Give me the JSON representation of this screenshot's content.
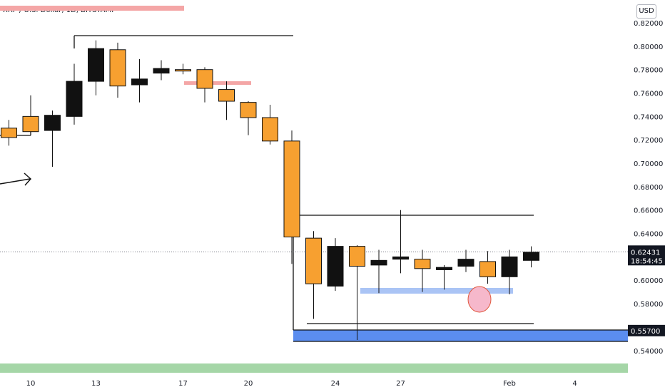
{
  "header": {
    "title": "XRP / U.S. Dollar, 1D, BITSTAMP",
    "currency_button": "USD"
  },
  "chart_data": {
    "type": "candlestick",
    "x_ticks": [
      {
        "label": "10",
        "day": 0
      },
      {
        "label": "13",
        "day": 3
      },
      {
        "label": "17",
        "day": 7
      },
      {
        "label": "20",
        "day": 10
      },
      {
        "label": "24",
        "day": 14
      },
      {
        "label": "27",
        "day": 17
      },
      {
        "label": "Feb",
        "day": 22
      },
      {
        "label": "4",
        "day": 25
      }
    ],
    "y_ticks": [
      "0.82000",
      "0.80000",
      "0.78000",
      "0.76000",
      "0.74000",
      "0.72000",
      "0.70000",
      "0.68000",
      "0.66000",
      "0.64000",
      "0.62000",
      "0.60000",
      "0.58000",
      "0.56000",
      "0.54000"
    ],
    "ylim": [
      0.535,
      0.827
    ],
    "candles": [
      {
        "day": -1,
        "o": 0.73,
        "h": 0.737,
        "l": 0.715,
        "c": 0.722
      },
      {
        "day": 0,
        "o": 0.74,
        "h": 0.758,
        "l": 0.724,
        "c": 0.727
      },
      {
        "day": 1,
        "o": 0.728,
        "h": 0.745,
        "l": 0.697,
        "c": 0.741
      },
      {
        "day": 2,
        "o": 0.74,
        "h": 0.785,
        "l": 0.733,
        "c": 0.77
      },
      {
        "day": 3,
        "o": 0.77,
        "h": 0.805,
        "l": 0.758,
        "c": 0.798
      },
      {
        "day": 4,
        "o": 0.797,
        "h": 0.803,
        "l": 0.756,
        "c": 0.766
      },
      {
        "day": 5,
        "o": 0.767,
        "h": 0.789,
        "l": 0.752,
        "c": 0.772
      },
      {
        "day": 6,
        "o": 0.777,
        "h": 0.788,
        "l": 0.771,
        "c": 0.781
      },
      {
        "day": 7,
        "o": 0.78,
        "h": 0.785,
        "l": 0.776,
        "c": 0.779
      },
      {
        "day": 8,
        "o": 0.78,
        "h": 0.782,
        "l": 0.752,
        "c": 0.764
      },
      {
        "day": 9,
        "o": 0.763,
        "h": 0.77,
        "l": 0.737,
        "c": 0.753
      },
      {
        "day": 10,
        "o": 0.752,
        "h": 0.753,
        "l": 0.724,
        "c": 0.739
      },
      {
        "day": 11,
        "o": 0.739,
        "h": 0.75,
        "l": 0.716,
        "c": 0.719
      },
      {
        "day": 12,
        "o": 0.719,
        "h": 0.728,
        "l": 0.614,
        "c": 0.637
      },
      {
        "day": 13,
        "o": 0.636,
        "h": 0.642,
        "l": 0.567,
        "c": 0.597
      },
      {
        "day": 14,
        "o": 0.595,
        "h": 0.636,
        "l": 0.591,
        "c": 0.629
      },
      {
        "day": 15,
        "o": 0.629,
        "h": 0.63,
        "l": 0.549,
        "c": 0.612
      },
      {
        "day": 16,
        "o": 0.613,
        "h": 0.626,
        "l": 0.589,
        "c": 0.617
      },
      {
        "day": 17,
        "o": 0.618,
        "h": 0.66,
        "l": 0.606,
        "c": 0.62
      },
      {
        "day": 18,
        "o": 0.618,
        "h": 0.626,
        "l": 0.59,
        "c": 0.61
      },
      {
        "day": 19,
        "o": 0.609,
        "h": 0.613,
        "l": 0.592,
        "c": 0.611
      },
      {
        "day": 20,
        "o": 0.612,
        "h": 0.626,
        "l": 0.607,
        "c": 0.618
      },
      {
        "day": 21,
        "o": 0.616,
        "h": 0.625,
        "l": 0.597,
        "c": 0.603
      },
      {
        "day": 22,
        "o": 0.603,
        "h": 0.626,
        "l": 0.588,
        "c": 0.62
      },
      {
        "day": 23,
        "o": 0.617,
        "h": 0.629,
        "l": 0.611,
        "c": 0.624
      }
    ],
    "current_price": "0.62431",
    "countdown": "18:54:45",
    "support_level": "0.55700",
    "colors": {
      "up_body": "#f7a030",
      "down_body": "#111111",
      "current_price_label": "#131722",
      "support_label": "#131722",
      "support_band": "#5b8def",
      "small_band": "#aac4f5",
      "pink_marker": "#f4a6a6",
      "green_strip": "#a5d6a7",
      "circle_fill": "#f6b8cb",
      "circle_stroke": "#e0573c"
    }
  }
}
